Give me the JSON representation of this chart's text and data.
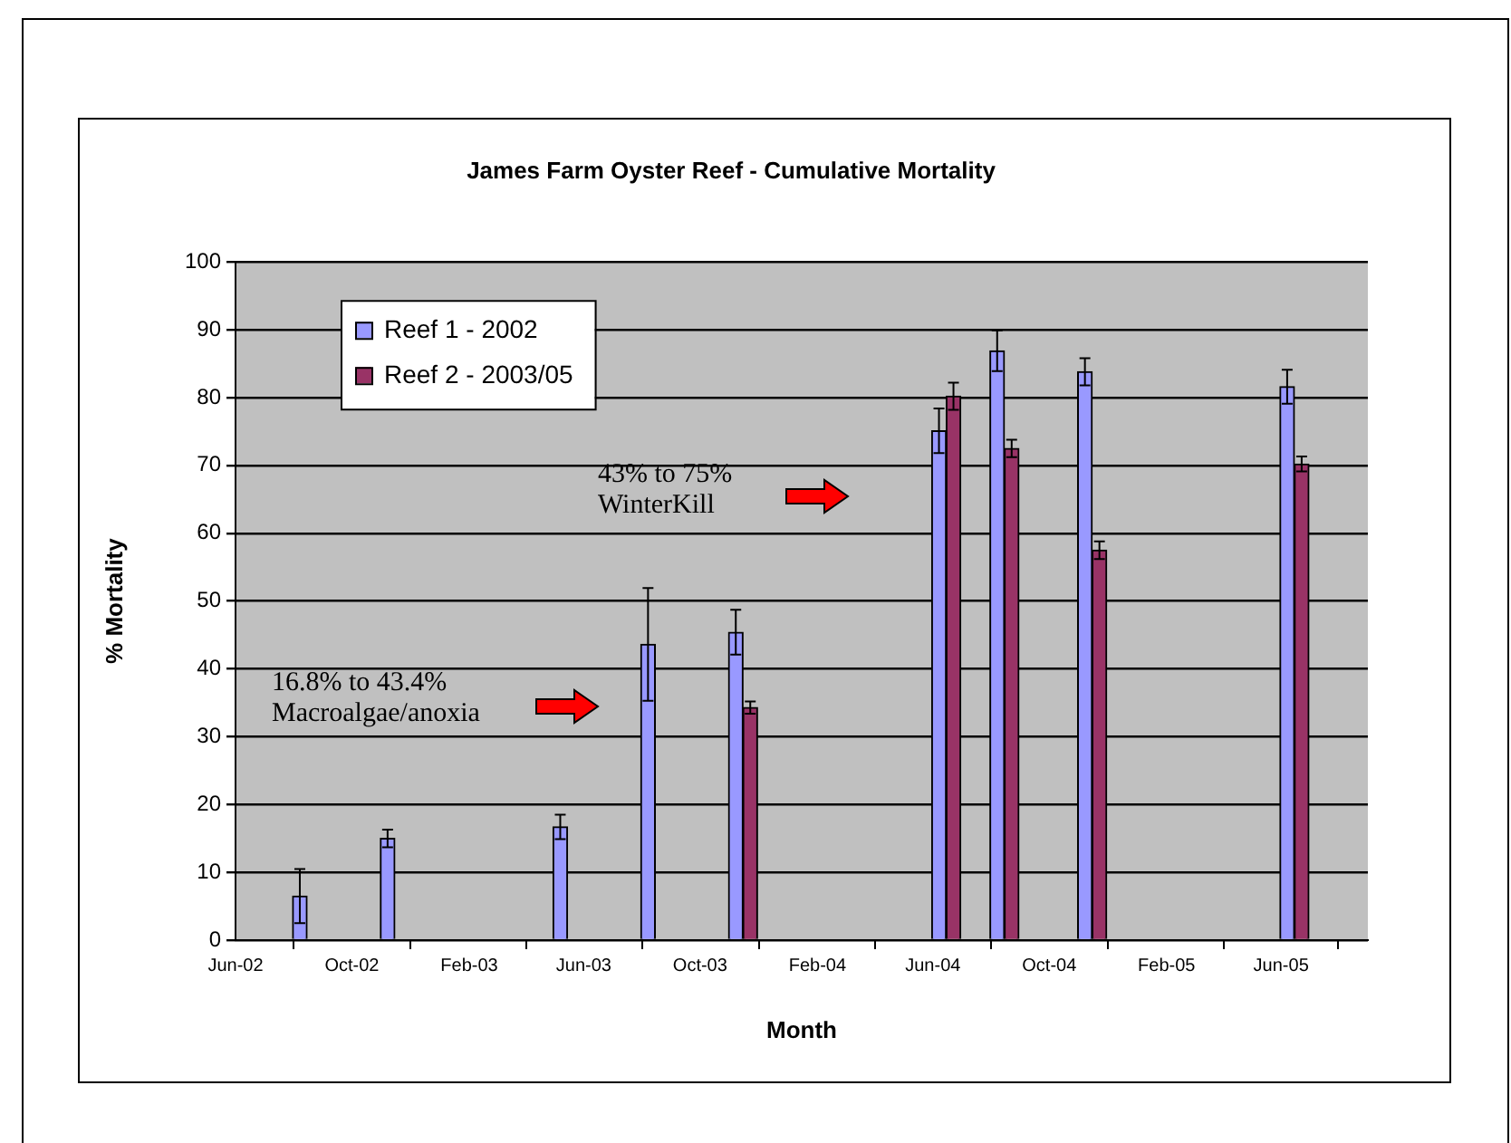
{
  "chart_data": {
    "type": "bar",
    "title": "James Farm Oyster Reef - Cumulative Mortality",
    "xlabel": "Month",
    "ylabel": "% Mortality",
    "x": [
      "2002-08-15",
      "2002-11-15",
      "2003-05-15",
      "2003-08-15",
      "2003-11-15",
      "2004-06-15",
      "2004-08-15",
      "2004-11-15",
      "2005-06-15"
    ],
    "series": [
      {
        "name": "Reef 1 - 2002",
        "color": "#9999ff",
        "values": [
          6.5,
          15,
          16.7,
          43.6,
          45.4,
          75.1,
          86.9,
          83.8,
          81.6
        ],
        "errors": [
          4,
          1.3,
          1.8,
          8.3,
          3.3,
          3.3,
          3,
          2,
          2.5
        ]
      },
      {
        "name": "Reef 2 - 2003/05",
        "color": "#993366",
        "values": [
          null,
          null,
          null,
          null,
          34.3,
          80.2,
          72.5,
          57.5,
          70.2
        ],
        "errors": [
          null,
          null,
          null,
          null,
          0.9,
          2,
          1.3,
          1.3,
          1.1
        ]
      }
    ],
    "xlim": [
      "2002-06-01",
      "2005-08-31"
    ],
    "xticks": [
      {
        "value": "2002-06-01",
        "label": "Jun-02"
      },
      {
        "value": "2002-10-01",
        "label": "Oct-02"
      },
      {
        "value": "2003-02-01",
        "label": "Feb-03"
      },
      {
        "value": "2003-06-01",
        "label": "Jun-03"
      },
      {
        "value": "2003-10-01",
        "label": "Oct-03"
      },
      {
        "value": "2004-02-01",
        "label": "Feb-04"
      },
      {
        "value": "2004-06-01",
        "label": "Jun-04"
      },
      {
        "value": "2004-10-01",
        "label": "Oct-04"
      },
      {
        "value": "2005-02-01",
        "label": "Feb-05"
      },
      {
        "value": "2005-06-01",
        "label": "Jun-05"
      }
    ],
    "ylim": [
      0,
      100
    ],
    "yticks": [
      0,
      10,
      20,
      30,
      40,
      50,
      60,
      70,
      80,
      90,
      100
    ],
    "grid": "y",
    "legend": "top left",
    "annotations": [
      "16.8% to 43.4%\nMacroalgae/anoxia",
      "43% to 75%\nWinterKill"
    ]
  }
}
